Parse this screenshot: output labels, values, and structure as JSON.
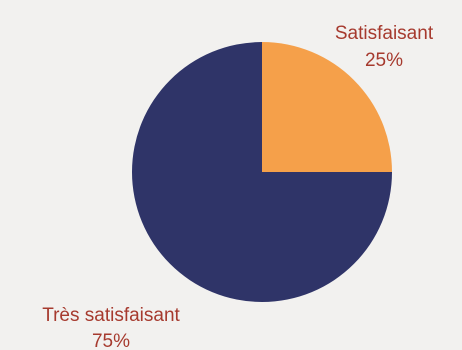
{
  "chart_data": {
    "type": "pie",
    "title": "",
    "slices": [
      {
        "label": "Satisfaisant",
        "value": 25,
        "value_label": "25%",
        "color": "#f5a04a"
      },
      {
        "label": "Très satisfaisant",
        "value": 75,
        "value_label": "75%",
        "color": "#2f3468"
      }
    ],
    "label_color": "#a63a2e",
    "start_angle": "12 o'clock",
    "direction": "clockwise"
  }
}
